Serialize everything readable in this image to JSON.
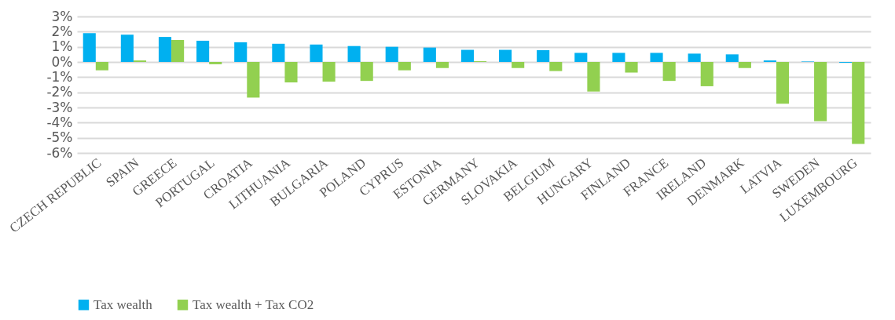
{
  "chart_data": {
    "type": "bar",
    "categories": [
      "CZECH REPUBLIC",
      "SPAIN",
      "GREECE",
      "PORTUGAL",
      "CROATIA",
      "LITHUANIA",
      "BULGARIA",
      "POLAND",
      "CYPRUS",
      "ESTONIA",
      "GERMANY",
      "SLOVAKIA",
      "BELGIUM",
      "HUNGARY",
      "FINLAND",
      "FRANCE",
      "IRELAND",
      "DENMARK",
      "LATVIA",
      "SWEDEN",
      "LUXEMBOURG"
    ],
    "series": [
      {
        "name": "Tax wealth",
        "color": "#00b0f0",
        "values": [
          1.9,
          1.8,
          1.65,
          1.4,
          1.3,
          1.2,
          1.15,
          1.05,
          1.0,
          0.95,
          0.8,
          0.8,
          0.78,
          0.6,
          0.6,
          0.6,
          0.55,
          0.5,
          0.1,
          0.03,
          -0.05
        ]
      },
      {
        "name": "Tax wealth + Tax CO2",
        "color": "#92d050",
        "values": [
          -0.55,
          0.1,
          1.45,
          -0.15,
          -2.35,
          -1.35,
          -1.3,
          -1.25,
          -0.55,
          -0.4,
          0.05,
          -0.4,
          -0.6,
          -1.95,
          -0.7,
          -1.25,
          -1.6,
          -0.4,
          -2.75,
          -3.9,
          -5.4
        ]
      }
    ],
    "ylim": [
      -6,
      3
    ],
    "yticks": [
      {
        "value": -6,
        "label": "-6%"
      },
      {
        "value": -5,
        "label": "-5%"
      },
      {
        "value": -4,
        "label": "-4%"
      },
      {
        "value": -3,
        "label": "-3%"
      },
      {
        "value": -2,
        "label": "-2%"
      },
      {
        "value": -1,
        "label": "-1%"
      },
      {
        "value": 0,
        "label": "0%"
      },
      {
        "value": 1,
        "label": "1%"
      },
      {
        "value": 2,
        "label": "2%"
      },
      {
        "value": 3,
        "label": "3%"
      }
    ],
    "grid": "y",
    "legend": "bottom"
  }
}
